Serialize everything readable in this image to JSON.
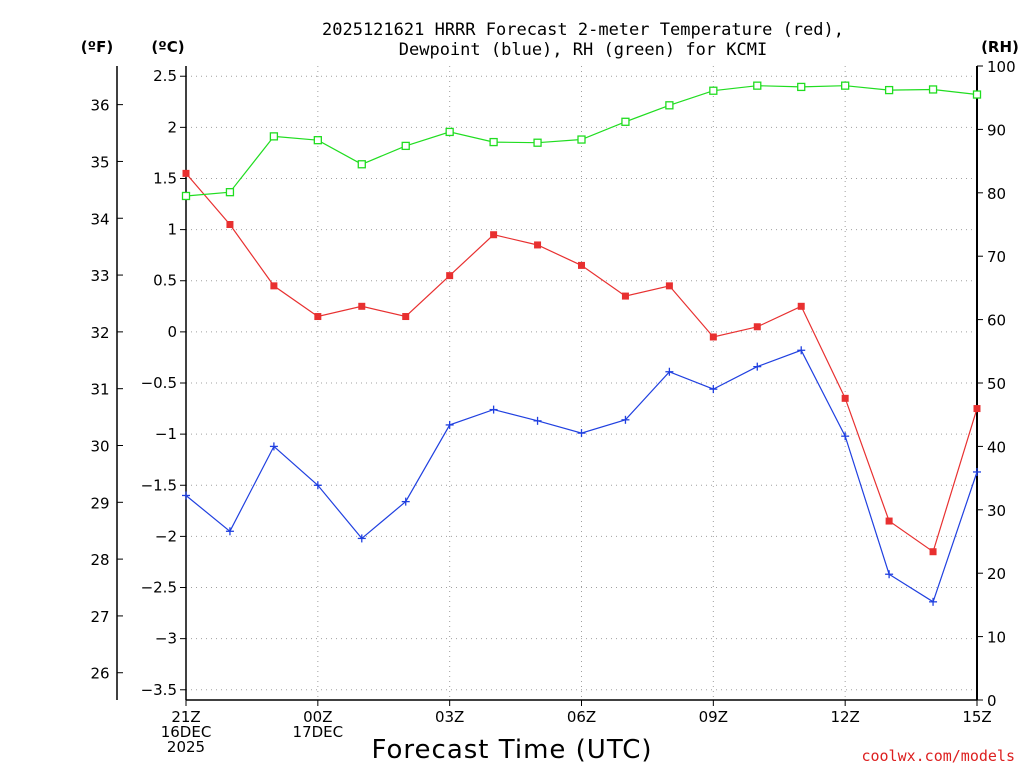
{
  "chart_data": {
    "type": "line",
    "title_line1": "2025121621 HRRR Forecast 2-meter Temperature (red),",
    "title_line2": "Dewpoint (blue), RH (green) for KCMI",
    "left_unit_f": "(ºF)",
    "left_unit_c": "(ºC)",
    "right_unit": "(RH)",
    "xlabel": "Forecast Time (UTC)",
    "credit": "coolwx.com/models",
    "credit_color": "#dd2020",
    "x": [
      0,
      1,
      2,
      3,
      4,
      5,
      6,
      7,
      8,
      9,
      10,
      11,
      12,
      13,
      14,
      15,
      16,
      17,
      18
    ],
    "xlim": [
      0,
      18
    ],
    "x_ticks": [
      {
        "x": 0,
        "lines": [
          "21Z",
          "16DEC",
          "2025"
        ]
      },
      {
        "x": 3,
        "lines": [
          "00Z",
          "17DEC"
        ]
      },
      {
        "x": 6,
        "lines": [
          "03Z"
        ]
      },
      {
        "x": 9,
        "lines": [
          "06Z"
        ]
      },
      {
        "x": 12,
        "lines": [
          "09Z"
        ]
      },
      {
        "x": 15,
        "lines": [
          "12Z"
        ]
      },
      {
        "x": 18,
        "lines": [
          "15Z"
        ]
      }
    ],
    "celsius_ylim": [
      -3.6,
      2.6
    ],
    "celsius_ticks": [
      2.5,
      2,
      1.5,
      1,
      0.5,
      0,
      -0.5,
      -1,
      -1.5,
      -2,
      -2.5,
      -3,
      -3.5
    ],
    "celsius_tick_labels": [
      "2.5",
      "2",
      "1.5",
      "1",
      "0.5",
      "0",
      "−0.5",
      "−1",
      "−1.5",
      "−2",
      "−2.5",
      "−3",
      "−3.5"
    ],
    "fahrenheit_ticks": [
      36,
      35,
      34,
      33,
      32,
      31,
      30,
      29,
      28,
      27,
      26
    ],
    "fahrenheit_tick_labels": [
      "36",
      "35",
      "34",
      "33",
      "32",
      "31",
      "30",
      "29",
      "28",
      "27",
      "26"
    ],
    "rh_ylim": [
      0,
      100
    ],
    "rh_ticks": [
      100,
      90,
      80,
      70,
      60,
      50,
      40,
      30,
      20,
      10,
      0
    ],
    "rh_tick_labels": [
      "100",
      "90",
      "80",
      "70",
      "60",
      "50",
      "40",
      "30",
      "20",
      "10",
      "0"
    ],
    "series": [
      {
        "name": "Temperature",
        "axis": "celsius",
        "color": "#e83030",
        "marker": "filled-square",
        "values": [
          1.55,
          1.05,
          0.45,
          0.15,
          0.25,
          0.15,
          0.55,
          0.95,
          0.85,
          0.65,
          0.35,
          0.45,
          -0.05,
          0.05,
          0.25,
          -0.65,
          -1.85,
          -2.15,
          -0.75
        ]
      },
      {
        "name": "Dewpoint",
        "axis": "celsius",
        "color": "#2040e0",
        "marker": "plus",
        "values": [
          -1.6,
          -1.95,
          -1.12,
          -1.5,
          -2.02,
          -1.66,
          -0.91,
          -0.76,
          -0.87,
          -0.99,
          -0.86,
          -0.39,
          -0.56,
          -0.34,
          -0.18,
          -1.02,
          -2.37,
          -2.64,
          -1.37
        ]
      },
      {
        "name": "RH",
        "axis": "rh",
        "color": "#20dd20",
        "marker": "open-square",
        "values": [
          79.5,
          80.1,
          88.9,
          88.3,
          84.5,
          87.4,
          89.6,
          88.0,
          87.9,
          88.4,
          91.2,
          93.8,
          96.1,
          96.9,
          96.7,
          96.9,
          96.2,
          96.3,
          95.5
        ]
      }
    ]
  }
}
